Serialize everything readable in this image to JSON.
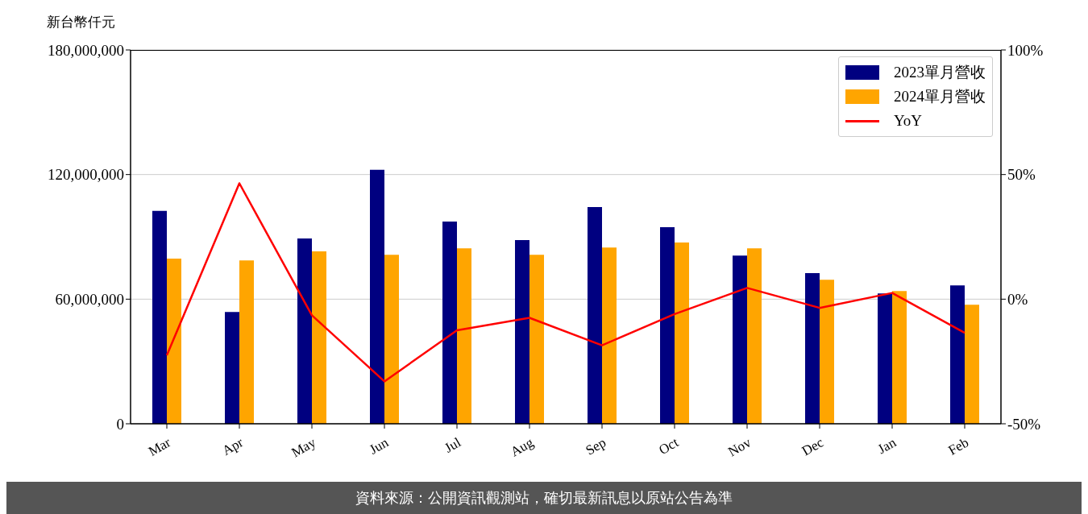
{
  "chart_data": {
    "type": "bar",
    "ylabel": "新台幣仟元",
    "categories": [
      "Mar",
      "Apr",
      "May",
      "Jun",
      "Jul",
      "Aug",
      "Sep",
      "Oct",
      "Nov",
      "Dec",
      "Jan",
      "Feb"
    ],
    "series": [
      {
        "name": "2023單月營收",
        "color": "#000080",
        "values": [
          102500000,
          53800000,
          89200000,
          122300000,
          97400000,
          88400000,
          104400000,
          94700000,
          81000000,
          72500000,
          62700000,
          66600000
        ]
      },
      {
        "name": "2024單月營收",
        "color": "#ffa500",
        "values": [
          79500000,
          78700000,
          83000000,
          81400000,
          84500000,
          81400000,
          84900000,
          87300000,
          84500000,
          69300000,
          63900000,
          57300000
        ]
      },
      {
        "name": "YoY",
        "type": "line",
        "axis": "y2",
        "color": "#ff0000",
        "values": [
          -22.5,
          46.5,
          -6.5,
          -33,
          -12.5,
          -7.5,
          -18.5,
          -6,
          4.5,
          -3.5,
          2.5,
          -13.5
        ]
      }
    ],
    "ylim": [
      0,
      180000000
    ],
    "yticks": [
      {
        "value": 0,
        "label": "0"
      },
      {
        "value": 60000000,
        "label": "60,000,000"
      },
      {
        "value": 120000000,
        "label": "120,000,000"
      },
      {
        "value": 180000000,
        "label": "180,000,000"
      }
    ],
    "y2lim": [
      -50,
      100
    ],
    "y2ticks": [
      {
        "value": -50,
        "label": "-50%"
      },
      {
        "value": 0,
        "label": "0%"
      },
      {
        "value": 50,
        "label": "50%"
      },
      {
        "value": 100,
        "label": "100%"
      }
    ],
    "grid": "y",
    "legend": "top right",
    "marker": "none",
    "line_style": "solid",
    "annotations": [
      "資料來源：公開資訊觀測站，確切最新訊息以原站公告為準"
    ]
  }
}
